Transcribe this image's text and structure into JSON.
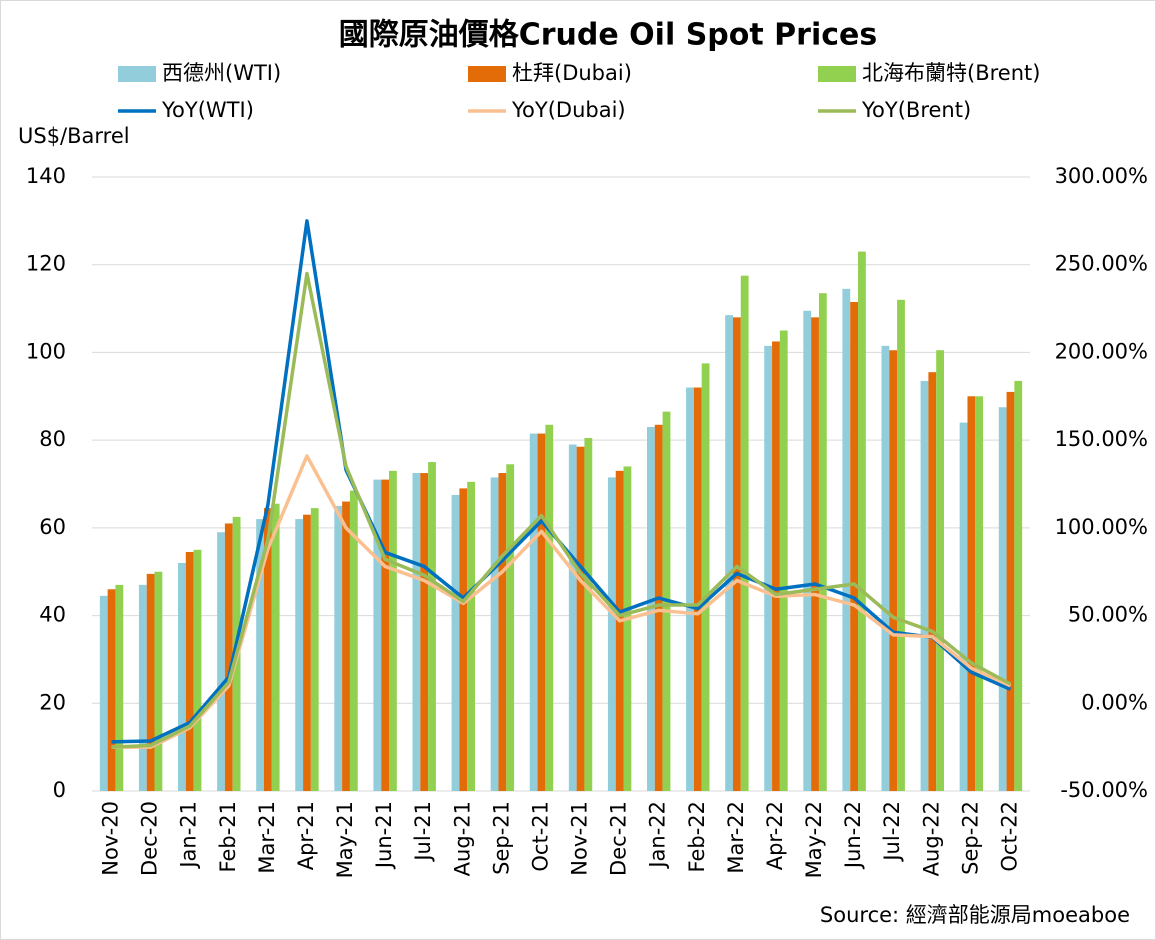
{
  "chart_data": {
    "type": "bar-line",
    "title": "國際原油價格Crude Oil Spot Prices",
    "y_label": "US$/Barrel",
    "source": "Source: 經濟部能源局moeaboe",
    "categories": [
      "Nov-20",
      "Dec-20",
      "Jan-21",
      "Feb-21",
      "Mar-21",
      "Apr-21",
      "May-21",
      "Jun-21",
      "Jul-21",
      "Aug-21",
      "Sep-21",
      "Oct-21",
      "Nov-21",
      "Dec-21",
      "Jan-22",
      "Feb-22",
      "Mar-22",
      "Apr-22",
      "May-22",
      "Jun-22",
      "Jul-22",
      "Aug-22",
      "Sep-22",
      "Oct-22"
    ],
    "ylim": [
      0,
      140
    ],
    "yticks": [
      0,
      20,
      40,
      60,
      80,
      100,
      120,
      140
    ],
    "y2lim": [
      -50,
      300
    ],
    "y2ticks": [
      {
        "value": -50,
        "label": "-50.00%"
      },
      {
        "value": 0,
        "label": "0.00%"
      },
      {
        "value": 50,
        "label": "50.00%"
      },
      {
        "value": 100,
        "label": "100.00%"
      },
      {
        "value": 150,
        "label": "150.00%"
      },
      {
        "value": 200,
        "label": "200.00%"
      },
      {
        "value": 250,
        "label": "250.00%"
      },
      {
        "value": 300,
        "label": "300.00%"
      }
    ],
    "grid": true,
    "series": [
      {
        "name": "西德州(WTI)",
        "type": "bar",
        "color": "#92cddc",
        "values": [
          44.5,
          47,
          52,
          59,
          62,
          62,
          65,
          71,
          72.5,
          67.5,
          71.5,
          81.5,
          79,
          71.5,
          83,
          92,
          108.5,
          101.5,
          109.5,
          114.5,
          101.5,
          93.5,
          84,
          87.5
        ]
      },
      {
        "name": "杜拜(Dubai)",
        "type": "bar",
        "color": "#e36c09",
        "values": [
          46,
          49.5,
          54.5,
          61,
          64.5,
          63,
          66,
          71,
          72.5,
          69,
          72.5,
          81.5,
          78.5,
          73,
          83.5,
          92,
          108,
          102.5,
          108,
          111.5,
          100.5,
          95.5,
          90,
          91
        ]
      },
      {
        "name": "北海布蘭特(Brent)",
        "type": "bar",
        "color": "#92d050",
        "values": [
          47,
          50,
          55,
          62.5,
          65.5,
          64.5,
          68.5,
          73,
          75,
          70.5,
          74.5,
          83.5,
          80.5,
          74,
          86.5,
          97.5,
          117.5,
          105,
          113.5,
          123,
          112,
          100.5,
          90,
          93.5
        ]
      },
      {
        "name": "YoY(WTI)",
        "type": "line",
        "axis": "y2",
        "color": "#0070c0",
        "values": [
          -22,
          -21.5,
          -11,
          15,
          113,
          275,
          133,
          86,
          78,
          60,
          81.5,
          104,
          78,
          52,
          60,
          54,
          74,
          65,
          68,
          60,
          40.5,
          37.6,
          17.7,
          8
        ]
      },
      {
        "name": "YoY(Dubai)",
        "type": "line",
        "axis": "y2",
        "color": "#fac090",
        "values": [
          -25,
          -25,
          -14,
          10,
          88,
          141,
          100,
          78,
          70,
          57,
          75,
          98,
          70,
          47,
          53,
          51,
          70,
          61,
          62,
          56,
          39,
          38,
          20,
          10
        ]
      },
      {
        "name": "YoY(Brent)",
        "type": "line",
        "axis": "y2",
        "color": "#9bbb59",
        "values": [
          -25,
          -24,
          -13,
          12,
          93,
          245,
          135,
          82,
          73,
          58,
          84,
          107,
          74,
          50,
          56,
          56,
          78,
          62,
          65,
          68,
          49,
          41,
          23,
          11
        ]
      }
    ]
  }
}
